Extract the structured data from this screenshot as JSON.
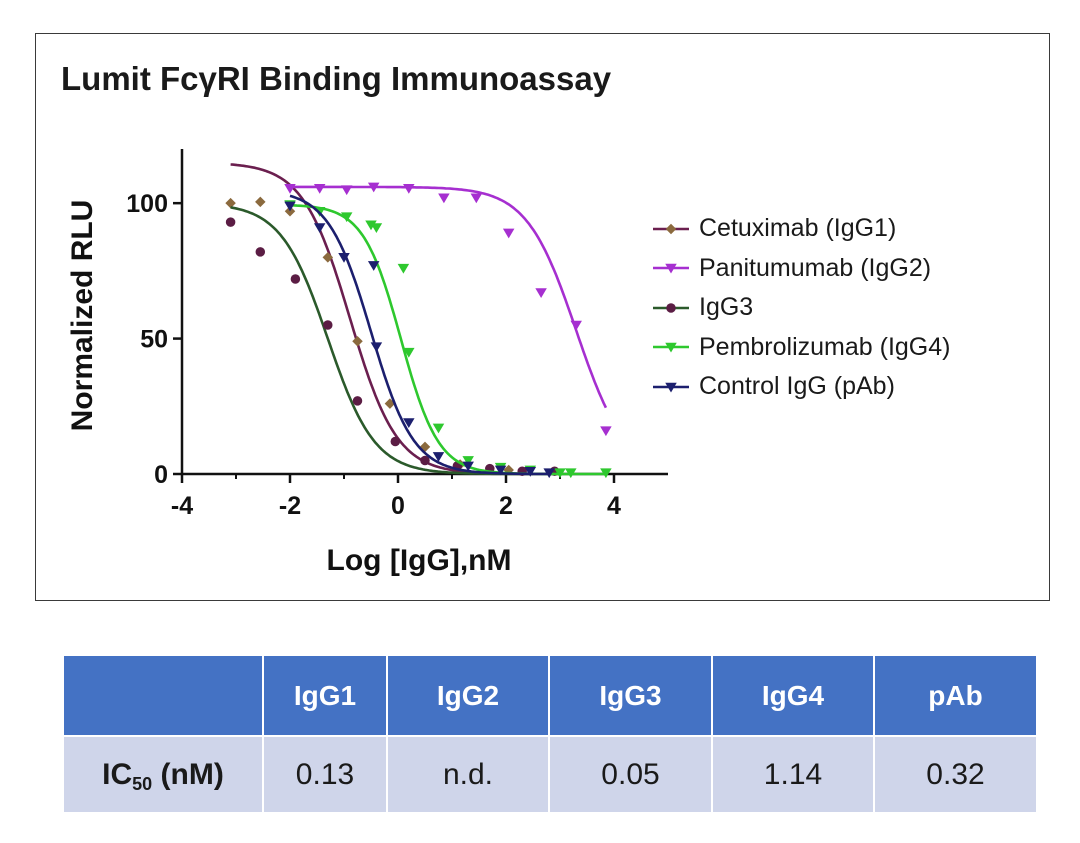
{
  "chart_data": {
    "type": "scatter",
    "title": "Lumit FcγRI Binding Immunoassay",
    "xlabel": "Log [IgG],nM",
    "ylabel": "Normalized RLU",
    "xlim": [
      -4,
      5
    ],
    "ylim": [
      0,
      120
    ],
    "xticks": [
      -4,
      -2,
      0,
      2,
      4
    ],
    "yticks": [
      0,
      50,
      100
    ],
    "legend_position": "right",
    "grid": false,
    "series": [
      {
        "name": "Cetuximab (IgG1)",
        "color": "#8b6a3e",
        "line_color": "#6b1f4f",
        "marker": "diamond",
        "fit": {
          "top": 115,
          "bottom": 0,
          "log_ic50": -0.89,
          "hill": 1.0,
          "x_range": [
            -3.1,
            2.5
          ]
        },
        "points": [
          [
            -3.1,
            100
          ],
          [
            -2.55,
            100.5
          ],
          [
            -2.0,
            97
          ],
          [
            -1.3,
            80
          ],
          [
            -0.75,
            49
          ],
          [
            -0.15,
            26
          ],
          [
            0.5,
            10
          ],
          [
            1.15,
            3.5
          ],
          [
            2.05,
            1.5
          ]
        ]
      },
      {
        "name": "Panitumumab (IgG2)",
        "color": "#a62fd0",
        "line_color": "#a62fd0",
        "marker": "triangle-down",
        "fit": {
          "top": 106,
          "bottom": 0,
          "log_ic50": 3.3,
          "hill": 0.95,
          "x_range": [
            -2.0,
            3.85
          ]
        },
        "points": [
          [
            -2.0,
            105.5
          ],
          [
            -1.45,
            105.5
          ],
          [
            -0.95,
            105
          ],
          [
            -0.45,
            106
          ],
          [
            0.2,
            105.5
          ],
          [
            0.85,
            102
          ],
          [
            1.45,
            102
          ],
          [
            2.05,
            89
          ],
          [
            2.65,
            67
          ],
          [
            3.3,
            55
          ],
          [
            3.85,
            16
          ]
        ]
      },
      {
        "name": "IgG3",
        "color": "#5b1d44",
        "line_color": "#2b5a2b",
        "marker": "circle",
        "fit": {
          "top": 100,
          "bottom": 0,
          "log_ic50": -1.3,
          "hill": 1.0,
          "x_range": [
            -3.1,
            2.5
          ]
        },
        "points": [
          [
            -3.1,
            93
          ],
          [
            -2.55,
            82
          ],
          [
            -1.9,
            72
          ],
          [
            -1.3,
            55
          ],
          [
            -0.75,
            27
          ],
          [
            -0.05,
            12
          ],
          [
            0.5,
            5
          ],
          [
            1.1,
            3
          ],
          [
            1.7,
            2
          ],
          [
            2.3,
            1
          ],
          [
            2.9,
            1
          ]
        ]
      },
      {
        "name": "Pembrolizumab (IgG4)",
        "color": "#2ec82e",
        "line_color": "#2ec82e",
        "marker": "triangle-down",
        "fit": {
          "top": 99.5,
          "bottom": 0,
          "log_ic50": 0.055,
          "hill": 1.25,
          "x_range": [
            -2.0,
            3.85
          ]
        },
        "points": [
          [
            -2.0,
            99.5
          ],
          [
            -1.45,
            97
          ],
          [
            -0.95,
            95
          ],
          [
            -0.5,
            92
          ],
          [
            -0.4,
            91
          ],
          [
            0.1,
            76
          ],
          [
            0.2,
            45
          ],
          [
            0.75,
            17
          ],
          [
            1.3,
            5
          ],
          [
            1.9,
            2.5
          ],
          [
            2.45,
            1.5
          ],
          [
            3.0,
            0.5
          ],
          [
            3.2,
            0.5
          ],
          [
            3.85,
            0.5
          ]
        ]
      },
      {
        "name": "Control IgG (pAb)",
        "color": "#1c1f6e",
        "line_color": "#1c1f6e",
        "marker": "triangle-down",
        "fit": {
          "top": 105,
          "bottom": 0,
          "log_ic50": -0.5,
          "hill": 1.1,
          "x_range": [
            -2.0,
            2.8
          ]
        },
        "points": [
          [
            -2.0,
            99
          ],
          [
            -1.45,
            91
          ],
          [
            -1.0,
            80
          ],
          [
            -0.45,
            77
          ],
          [
            -0.4,
            47
          ],
          [
            0.2,
            19
          ],
          [
            0.75,
            6.5
          ],
          [
            1.3,
            3
          ],
          [
            1.9,
            1.5
          ],
          [
            2.45,
            1
          ],
          [
            2.8,
            0.5
          ]
        ]
      }
    ]
  },
  "table": {
    "headers": [
      "",
      "IgG1",
      "IgG2",
      "IgG3",
      "IgG4",
      "pAb"
    ],
    "row_label_main": "IC",
    "row_label_sub": "50",
    "row_label_unit": " (nM)",
    "values": [
      "0.13",
      "n.d.",
      "0.05",
      "1.14",
      "0.32"
    ]
  }
}
